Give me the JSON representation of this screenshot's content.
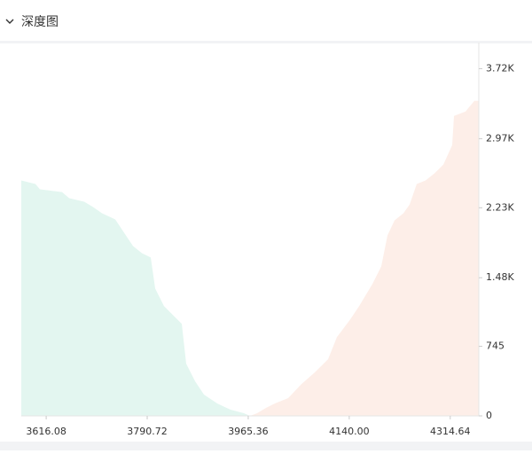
{
  "header": {
    "title": "深度图"
  },
  "chart_data": {
    "type": "area",
    "series": [
      {
        "color": "#e3f6f0",
        "x": [
          3573.0,
          3597.5,
          3605.2,
          3643.5,
          3655.8,
          3681.8,
          3697.2,
          3712.5,
          3735.5,
          3750.8,
          3766.2,
          3781.5,
          3796.8,
          3804.5,
          3819.8,
          3835.1,
          3850.5,
          3858.1,
          3873.5,
          3888.8,
          3911.8,
          3934.8,
          3957.8,
          3968.5
        ],
        "values": [
          2522,
          2484,
          2427,
          2398,
          2332,
          2294,
          2237,
          2171,
          2105,
          1962,
          1820,
          1744,
          1697,
          1365,
          1176,
          1081,
          986,
          559,
          370,
          228,
          133,
          66,
          28,
          0
        ]
      },
      {
        "color": "#fdeee8",
        "x": [
          3968.5,
          3980.8,
          3996.1,
          4011.4,
          4034.4,
          4057.4,
          4080.4,
          4103.4,
          4118.7,
          4141.7,
          4157.1,
          4180.1,
          4195.4,
          4206.1,
          4218.4,
          4233.7,
          4244.5,
          4256.7,
          4272.0,
          4287.4,
          4302.7,
          4318.0,
          4321.1,
          4341.0,
          4356.3,
          4364.0
        ],
        "values": [
          0,
          28,
          85,
          133,
          190,
          341,
          465,
          607,
          844,
          1033,
          1176,
          1413,
          1602,
          1934,
          2095,
          2171,
          2266,
          2484,
          2522,
          2598,
          2692,
          2901,
          3214,
          3261,
          3375,
          3375
        ]
      }
    ],
    "xlim": [
      3573,
      4364
    ],
    "xticks": [
      3616.08,
      3790.72,
      3965.36,
      {
        "value": 4140,
        "label": "4140.00"
      },
      4314.64
    ],
    "ylim": [
      0,
      4000
    ],
    "yticks": [
      0,
      745,
      {
        "value": 1480,
        "label": "1.48K"
      },
      {
        "value": 2230,
        "label": "2.23K"
      },
      {
        "value": 2970,
        "label": "2.97K"
      },
      {
        "value": 3720,
        "label": "3.72K"
      }
    ]
  }
}
